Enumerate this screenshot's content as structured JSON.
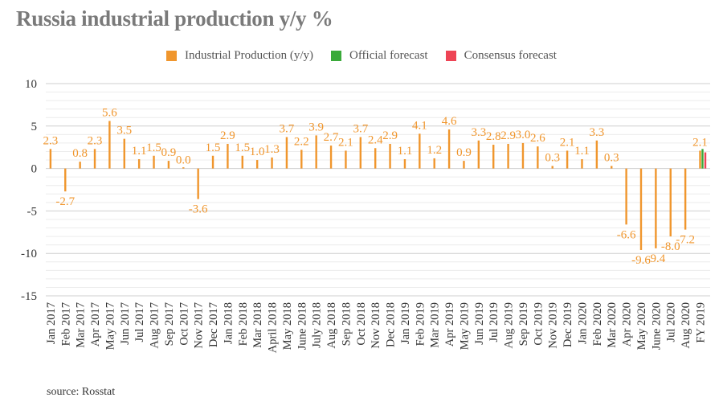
{
  "chart_data": {
    "type": "bar",
    "title": "Russia industrial production y/y %",
    "ylim": [
      -15,
      10
    ],
    "yticks": [
      -15,
      -10,
      -5,
      0,
      5,
      10
    ],
    "grid": true,
    "legend_position": "top-center",
    "categories": [
      "Jan 2017",
      "Feb 2017",
      "Mar 2017",
      "Apr 2017",
      "May 2017",
      "Jun 2017",
      "Jul 2017",
      "Aug 2017",
      "Sep 2017",
      "Oct 2017",
      "Nov 2017",
      "Dec 2017",
      "Jan 2018",
      "Feb 2018",
      "Mar 2018",
      "April 2018",
      "May 2018",
      "June 2018",
      "July 2018",
      "Aug 2018",
      "Sep 2018",
      "Oct 2018",
      "Nov 2018",
      "Dec 2018",
      "Jan 2019",
      "Feb 2019",
      "Mar 2019",
      "Apr 2019",
      "May 2019",
      "Jun 2019",
      "Jul 2019",
      "Aug 2019",
      "Sep 2019",
      "Oct 2019",
      "Nov 2019",
      "Dec 2019",
      "Jan 2020",
      "Feb 2020",
      "Mar 2020",
      "Apr 2020",
      "May 2020",
      "June 2020",
      "Jul 2020",
      "Aug 2020",
      "FY 2019"
    ],
    "series": [
      {
        "name": "Industrial Production (y/y)",
        "color": "#f0962d",
        "values": [
          2.3,
          -2.7,
          0.8,
          2.3,
          5.6,
          3.5,
          1.1,
          1.5,
          0.9,
          0.0,
          -3.6,
          1.5,
          2.9,
          1.5,
          1.0,
          1.3,
          3.7,
          2.2,
          3.9,
          2.7,
          2.1,
          3.7,
          2.4,
          2.9,
          1.1,
          4.1,
          1.2,
          4.6,
          0.9,
          3.3,
          2.8,
          2.9,
          3.0,
          2.6,
          0.3,
          2.1,
          1.1,
          3.3,
          0.3,
          -6.6,
          -9.6,
          -9.4,
          -8.0,
          -7.2,
          2.1
        ],
        "labels": [
          "2.3",
          "-2.7",
          "0.8",
          "2.3",
          "5.6",
          "3.5",
          "1.1",
          "1.5",
          "0.9",
          "0.0",
          "-3.6",
          "1.5",
          "2.9",
          "1.5",
          "1.0",
          "1.3",
          "3.7",
          "2.2",
          "3.9",
          "2.7",
          "2.1",
          "3.7",
          "2.4",
          "2.9",
          "1.1",
          "4.1",
          "1.2",
          "4.6",
          "0.9",
          "3.3",
          "2.8",
          "2.9",
          "3.0",
          "2.6",
          "0.3",
          "2.1",
          "1.1",
          "3.3",
          "0.3",
          "-6.6",
          "-9.6",
          "-9.4",
          "-8.0",
          "-7.2",
          "2.1"
        ]
      },
      {
        "name": "Official forecast",
        "color": "#3aaa3a",
        "category": "FY 2019",
        "value": 2.3
      },
      {
        "name": "Consensus forecast",
        "color": "#ee4455",
        "category": "FY 2019",
        "value": 1.9
      }
    ]
  },
  "source": "source: Rosstat"
}
